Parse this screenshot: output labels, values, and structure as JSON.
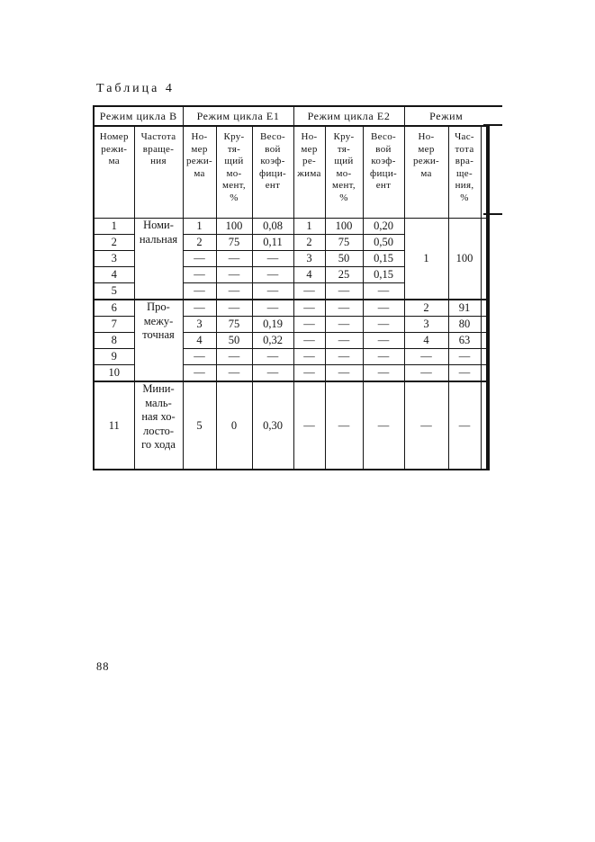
{
  "page": {
    "title": "Таблица 4",
    "page_number": "88"
  },
  "table": {
    "group_header": [
      {
        "text": "Режим цикла В",
        "colspan": 2
      },
      {
        "text": "Режим цикла Е1",
        "colspan": 3
      },
      {
        "text": "Режим цикла Е2",
        "colspan": 3
      },
      {
        "text": "Режим",
        "colspan": 3
      }
    ],
    "column_header": [
      "Номер\nрежи-\nма",
      "Частота\nвраще-\nния",
      "Но-\nмер\nрежи-\nма",
      "Кру-\nтя-\nщий\nмо-\nмент,\n%",
      "Весо-\nвой\nкоэф-\nфици-\nент",
      "Но-\nмер\nре-\nжима",
      "Кру-\nтя-\nщий\nмо-\nмент,\n%",
      "Весо-\nвой\nкоэф-\nфици-\nент",
      "Но-\nмер\nрежи-\nма",
      "Час-\nтота\nвра-\nще-\nния,\n%",
      ""
    ],
    "rows": [
      {
        "cls": "",
        "cells": [
          {
            "t": "1"
          },
          {
            "t": "Номи-\nнальная",
            "rs": 5,
            "c": "mode"
          },
          {
            "t": "1"
          },
          {
            "t": "100"
          },
          {
            "t": "0,08"
          },
          {
            "t": "1"
          },
          {
            "t": "100"
          },
          {
            "t": "0,20"
          },
          {
            "t": "1",
            "rs": 5
          },
          {
            "t": "100",
            "rs": 5
          },
          {
            "t": "",
            "rs": 5,
            "c": "edge"
          }
        ]
      },
      {
        "cls": "",
        "cells": [
          {
            "t": "2"
          },
          {
            "t": "2"
          },
          {
            "t": "75"
          },
          {
            "t": "0,11"
          },
          {
            "t": "2"
          },
          {
            "t": "75"
          },
          {
            "t": "0,50"
          }
        ]
      },
      {
        "cls": "",
        "cells": [
          {
            "t": "3"
          },
          {
            "t": "—"
          },
          {
            "t": "—"
          },
          {
            "t": "—"
          },
          {
            "t": "3"
          },
          {
            "t": "50"
          },
          {
            "t": "0,15"
          }
        ]
      },
      {
        "cls": "",
        "cells": [
          {
            "t": "4"
          },
          {
            "t": "—"
          },
          {
            "t": "—"
          },
          {
            "t": "—"
          },
          {
            "t": "4"
          },
          {
            "t": "25"
          },
          {
            "t": "0,15"
          }
        ]
      },
      {
        "cls": "",
        "cells": [
          {
            "t": "5"
          },
          {
            "t": "—"
          },
          {
            "t": "—"
          },
          {
            "t": "—"
          },
          {
            "t": "—"
          },
          {
            "t": "—"
          },
          {
            "t": "—"
          }
        ]
      },
      {
        "cls": "sec",
        "cells": [
          {
            "t": "6"
          },
          {
            "t": "Про-\nмежу-\nточная",
            "rs": 5,
            "c": "mode"
          },
          {
            "t": "—"
          },
          {
            "t": "—"
          },
          {
            "t": "—"
          },
          {
            "t": "—"
          },
          {
            "t": "—"
          },
          {
            "t": "—"
          },
          {
            "t": "2"
          },
          {
            "t": "91"
          },
          {
            "t": "",
            "c": "edge"
          }
        ]
      },
      {
        "cls": "",
        "cells": [
          {
            "t": "7"
          },
          {
            "t": "3"
          },
          {
            "t": "75"
          },
          {
            "t": "0,19"
          },
          {
            "t": "—"
          },
          {
            "t": "—"
          },
          {
            "t": "—"
          },
          {
            "t": "3"
          },
          {
            "t": "80"
          },
          {
            "t": "",
            "c": "edge"
          }
        ]
      },
      {
        "cls": "",
        "cells": [
          {
            "t": "8"
          },
          {
            "t": "4"
          },
          {
            "t": "50"
          },
          {
            "t": "0,32"
          },
          {
            "t": "—"
          },
          {
            "t": "—"
          },
          {
            "t": "—"
          },
          {
            "t": "4"
          },
          {
            "t": "63"
          },
          {
            "t": "",
            "c": "edge"
          }
        ]
      },
      {
        "cls": "",
        "cells": [
          {
            "t": "9"
          },
          {
            "t": "—"
          },
          {
            "t": "—"
          },
          {
            "t": "—"
          },
          {
            "t": "—"
          },
          {
            "t": "—"
          },
          {
            "t": "—"
          },
          {
            "t": "—"
          },
          {
            "t": "—"
          },
          {
            "t": "",
            "c": "edge"
          }
        ]
      },
      {
        "cls": "",
        "cells": [
          {
            "t": "10"
          },
          {
            "t": "—"
          },
          {
            "t": "—"
          },
          {
            "t": "—"
          },
          {
            "t": "—"
          },
          {
            "t": "—"
          },
          {
            "t": "—"
          },
          {
            "t": "—"
          },
          {
            "t": "—"
          },
          {
            "t": "",
            "c": "edge"
          }
        ]
      },
      {
        "cls": "sec tall",
        "cells": [
          {
            "t": "11"
          },
          {
            "t": "Мини-\nмаль-\nная хо-\nлосто-\nго хода",
            "c": "mode"
          },
          {
            "t": "5"
          },
          {
            "t": "0"
          },
          {
            "t": "0,30"
          },
          {
            "t": "—"
          },
          {
            "t": "—"
          },
          {
            "t": "—"
          },
          {
            "t": "—"
          },
          {
            "t": "—"
          },
          {
            "t": "",
            "c": "edge"
          }
        ]
      }
    ]
  }
}
